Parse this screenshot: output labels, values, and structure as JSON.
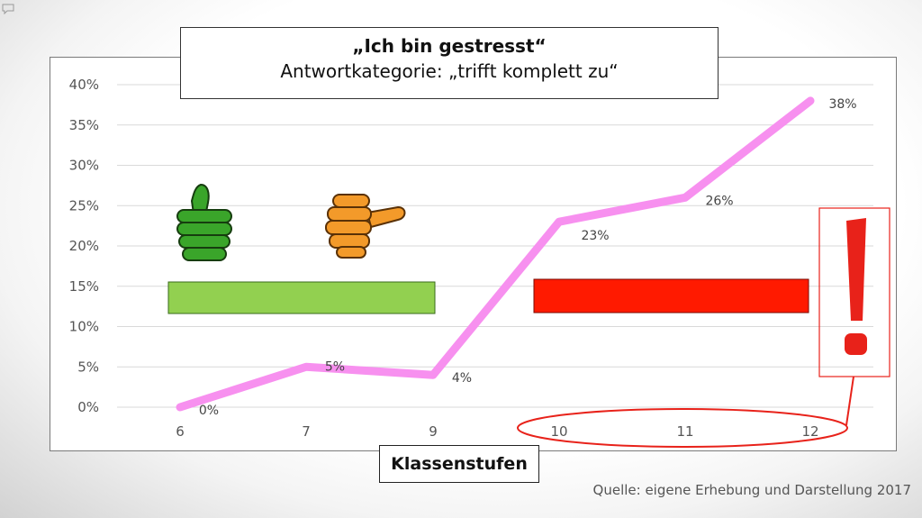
{
  "chart_data": {
    "type": "line",
    "title": "„Ich bin gestresst“",
    "subtitle": "Antwortkategorie: „trifft komplett zu“",
    "xlabel": "Klassenstufen",
    "ylabel": "",
    "categories": [
      "6",
      "7",
      "9",
      "10",
      "11",
      "12"
    ],
    "series": [
      {
        "values": [
          0,
          5,
          4,
          23,
          26,
          38
        ],
        "color": "#f790ef"
      }
    ],
    "data_labels": [
      "0%",
      "5%",
      "4%",
      "23%",
      "26%",
      "38%"
    ],
    "yticks": [
      0,
      5,
      10,
      15,
      20,
      25,
      30,
      35,
      40
    ],
    "ytick_labels": [
      "0%",
      "5%",
      "10%",
      "15%",
      "20%",
      "25%",
      "30%",
      "35%",
      "40%"
    ],
    "ylim": [
      0,
      40
    ],
    "grid": true,
    "annotations": {
      "good_bar": {
        "color": "#92d050",
        "categories": [
          "6",
          "9"
        ]
      },
      "bad_bar": {
        "color": "#ff1a00",
        "categories": [
          "10",
          "12"
        ]
      },
      "thumbs": [
        "thumbs-up-icon",
        "thumbs-sideways-icon"
      ],
      "highlight": {
        "color": "#e8221a",
        "categories": [
          "10",
          "11",
          "12"
        ]
      },
      "exclamation_color": "#e8221a"
    }
  },
  "source": "Quelle: eigene Erhebung und Darstellung 2017"
}
